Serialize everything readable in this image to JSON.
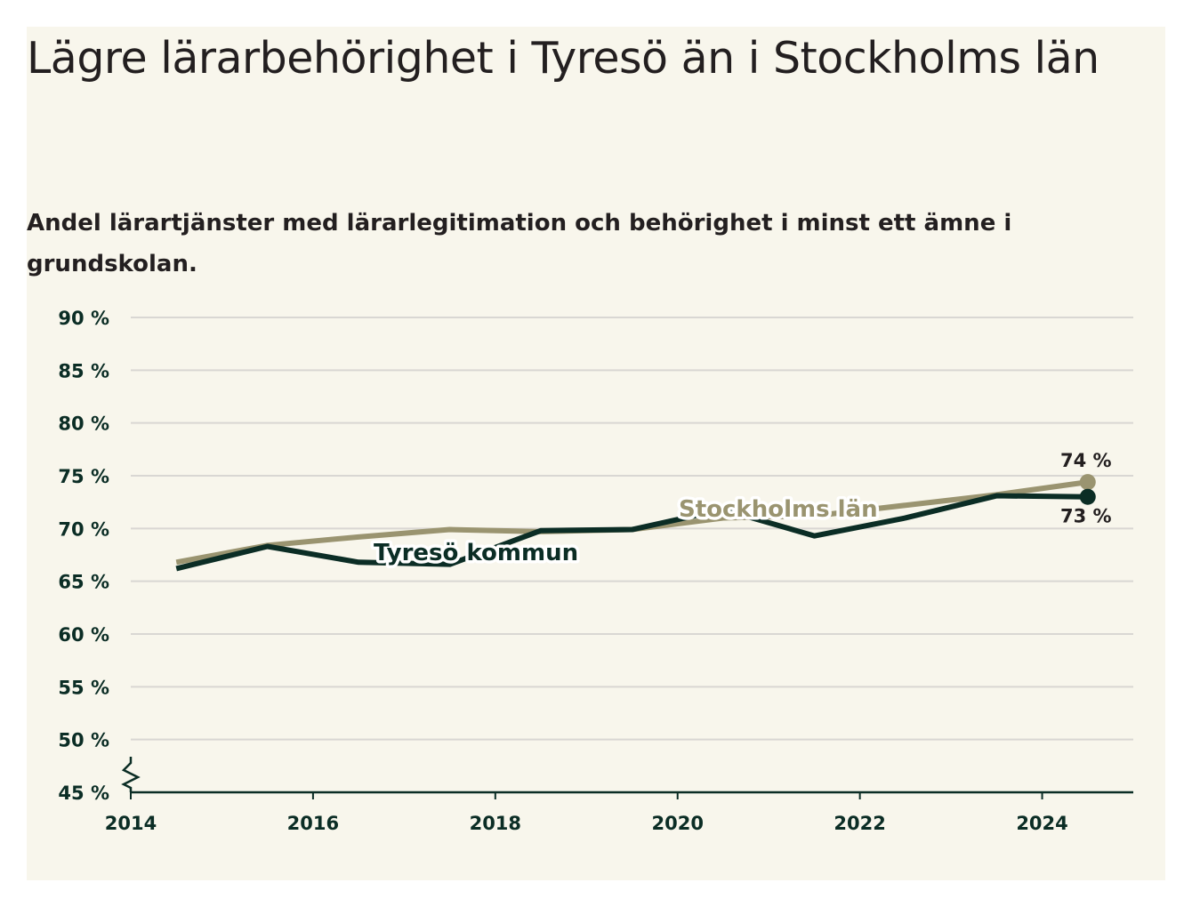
{
  "title": "Lägre lärarbehörighet i Tyresö än i Stockholms län",
  "subtitle": "Andel lärartjänster med lärarlegitimation och behörighet i minst ett ämne i grundskolan.",
  "chart_data": {
    "type": "line",
    "x": [
      2014.5,
      2015.5,
      2016.5,
      2017.5,
      2018.5,
      2019.5,
      2020.5,
      2021.5,
      2022.5,
      2023.5,
      2024.5
    ],
    "x_ticks": [
      2014,
      2016,
      2018,
      2020,
      2022,
      2024
    ],
    "x_tick_labels": [
      "2014",
      "2016",
      "2018",
      "2020",
      "2022",
      "2024"
    ],
    "xlim": [
      2014,
      2025
    ],
    "y_ticks": [
      45,
      50,
      55,
      60,
      65,
      70,
      75,
      80,
      85,
      90
    ],
    "y_tick_labels": [
      "45 %",
      "50 %",
      "55 %",
      "60 %",
      "65 %",
      "70 %",
      "75 %",
      "80 %",
      "85 %",
      "90 %"
    ],
    "ylim": [
      45,
      90
    ],
    "axis_break": true,
    "grid": true,
    "series": [
      {
        "name": "Stockholms län",
        "color": "#9a9470",
        "values": [
          66.8,
          68.4,
          69.2,
          69.9,
          69.7,
          69.9,
          71.0,
          71.2,
          72.2,
          73.2,
          74.4
        ],
        "end_label": "74 %"
      },
      {
        "name": "Tyresö kommun",
        "color": "#0b2d25",
        "values": [
          66.2,
          68.3,
          66.8,
          66.6,
          69.8,
          69.9,
          71.8,
          69.3,
          71.0,
          73.1,
          73.0
        ],
        "end_label": "73 %"
      }
    ],
    "gridline_color": "#d9d7d3",
    "axis_color": "#0b2d25"
  }
}
